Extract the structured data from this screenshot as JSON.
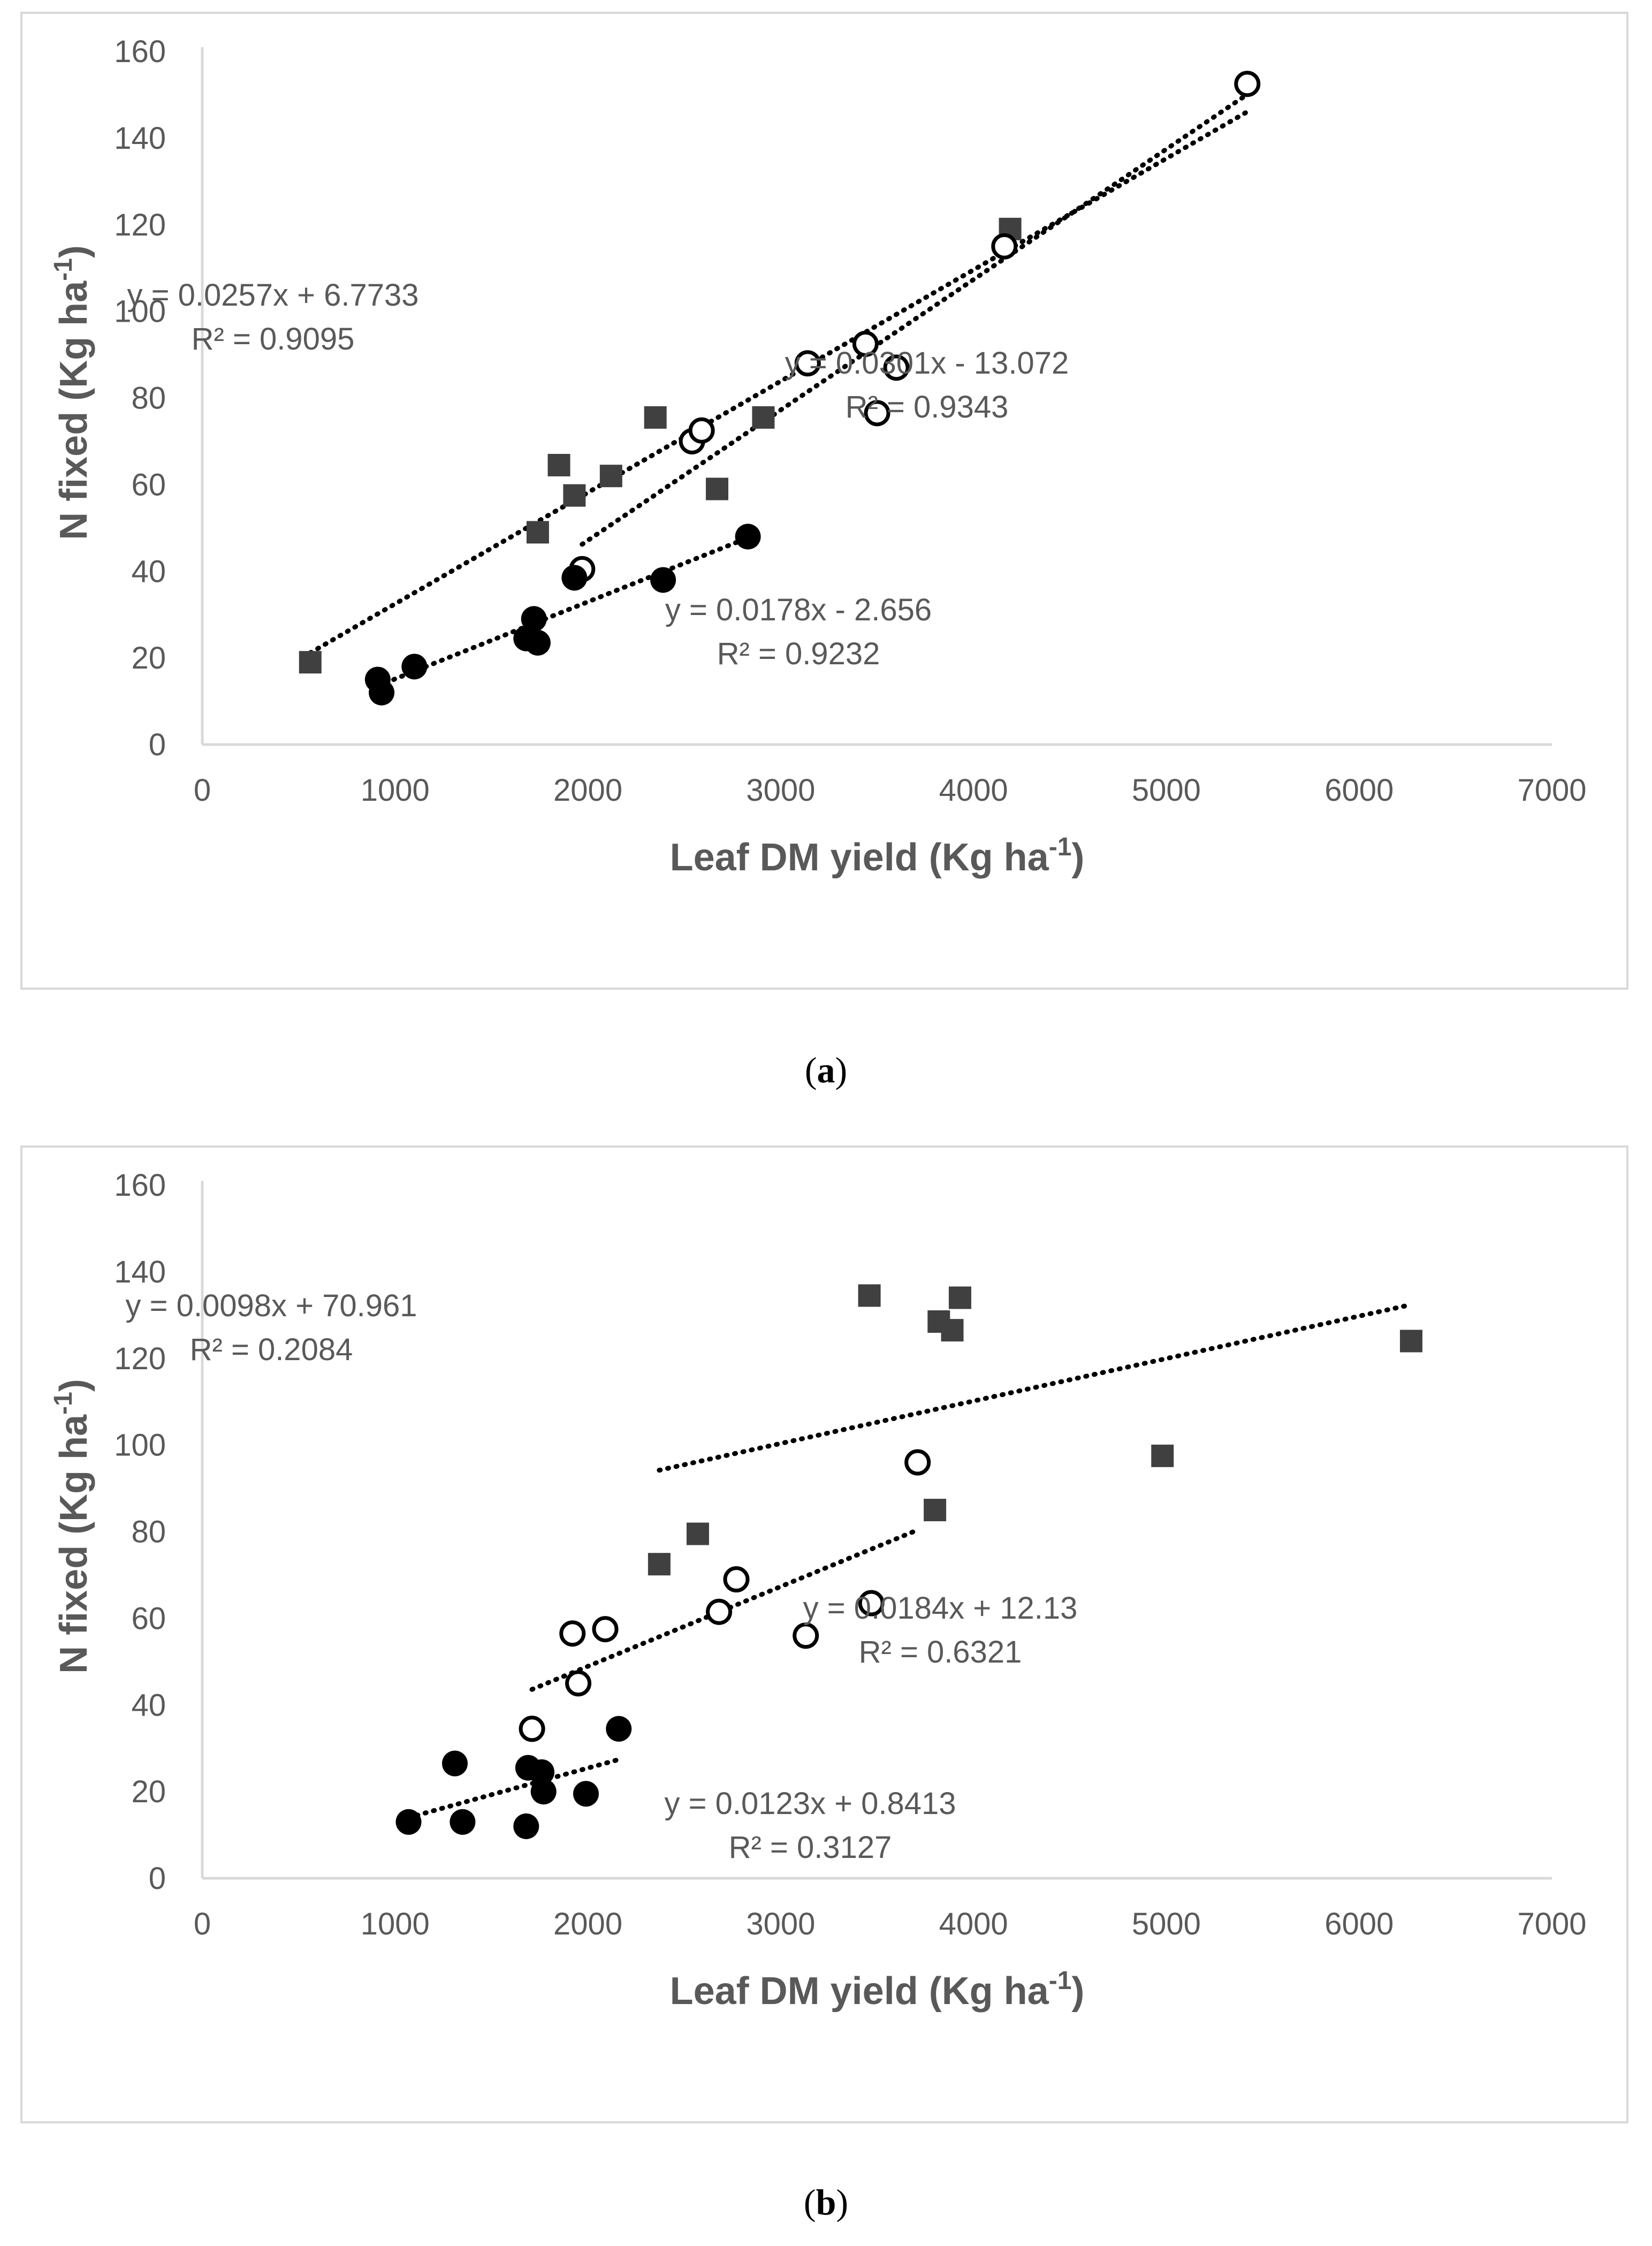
{
  "colors": {
    "axis": "#d9d9d9",
    "text": "#595959",
    "marker": "#000000",
    "square": "#404040",
    "caption": "#000000"
  },
  "charts": [
    {
      "panel": "a",
      "caption": {
        "open": "(",
        "letter": "a",
        "close": ")"
      },
      "xlabel": "Leaf DM yield (Kg ha",
      "ylabel": "N fixed (Kg ha",
      "unit_sup": "-1",
      "unit_close": ")",
      "annotations": [
        {
          "eq": "y = 0.0257x + 6.7733",
          "r2": "R² = 0.9095"
        },
        {
          "eq": "y = 0.0301x - 13.072",
          "r2": "R² = 0.9343"
        },
        {
          "eq": "y = 0.0178x - 2.656",
          "r2": "R² = 0.9232"
        }
      ]
    },
    {
      "panel": "b",
      "caption": {
        "open": "(",
        "letter": "b",
        "close": ")"
      },
      "xlabel": "Leaf DM yield (Kg ha",
      "ylabel": "N fixed (Kg ha",
      "unit_sup": "-1",
      "unit_close": ")",
      "annotations": [
        {
          "eq": "y = 0.0098x + 70.961",
          "r2": "R² = 0.2084"
        },
        {
          "eq": "y = 0.0184x + 12.13",
          "r2": "R² = 0.6321"
        },
        {
          "eq": "y = 0.0123x + 0.8413",
          "r2": "R² = 0.3127"
        }
      ]
    }
  ],
  "chart_data": [
    {
      "type": "scatter",
      "title": "",
      "xlabel": "Leaf DM yield (Kg ha-1)",
      "ylabel": "N fixed (Kg ha-1)",
      "xlim": [
        0,
        7000
      ],
      "ylim": [
        0,
        160
      ],
      "xticks": [
        0,
        1000,
        2000,
        3000,
        4000,
        5000,
        6000,
        7000
      ],
      "yticks": [
        0,
        20,
        40,
        60,
        80,
        100,
        120,
        140,
        160
      ],
      "grid": false,
      "series": [
        {
          "name": "filled square",
          "marker": "square",
          "x": [
            560,
            1740,
            1850,
            1930,
            2120,
            2350,
            2670,
            2910,
            4190
          ],
          "y": [
            19,
            49,
            64.5,
            57.5,
            62,
            75.5,
            59,
            75.5,
            119
          ],
          "trendline": {
            "slope": 0.0257,
            "intercept": 6.7733,
            "x_range": [
              560,
              5420
            ]
          }
        },
        {
          "name": "open circle",
          "marker": "open-circle",
          "x": [
            1970,
            2540,
            2590,
            3140,
            3440,
            3500,
            3600,
            4160,
            5420
          ],
          "y": [
            40.5,
            70,
            72.5,
            88,
            92.5,
            76.5,
            87,
            115,
            152.5
          ],
          "trendline": {
            "slope": 0.0301,
            "intercept": -13.072,
            "x_range": [
              1970,
              5420
            ]
          }
        },
        {
          "name": "filled circle",
          "marker": "filled-circle",
          "x": [
            910,
            930,
            1100,
            1680,
            1720,
            1740,
            1930,
            2390,
            2830
          ],
          "y": [
            15,
            12,
            18,
            24.5,
            29,
            23.5,
            38.5,
            38,
            48
          ],
          "trendline": {
            "slope": 0.0178,
            "intercept": -2.656,
            "x_range": [
              910,
              2830
            ]
          }
        }
      ]
    },
    {
      "type": "scatter",
      "title": "",
      "xlabel": "Leaf DM yield (Kg ha-1)",
      "ylabel": "N fixed (Kg ha-1)",
      "xlim": [
        0,
        7000
      ],
      "ylim": [
        0,
        160
      ],
      "xticks": [
        0,
        1000,
        2000,
        3000,
        4000,
        5000,
        6000,
        7000
      ],
      "yticks": [
        0,
        20,
        40,
        60,
        80,
        100,
        120,
        140,
        160
      ],
      "grid": false,
      "series": [
        {
          "name": "filled square",
          "marker": "square",
          "x": [
            2370,
            2570,
            3460,
            3800,
            3820,
            3890,
            3930,
            4980,
            6270
          ],
          "y": [
            72.5,
            79.5,
            134.5,
            85,
            128.5,
            126.5,
            134,
            97.5,
            124
          ],
          "trendline": {
            "slope": 0.0098,
            "intercept": 70.961,
            "x_range": [
              2370,
              6270
            ]
          }
        },
        {
          "name": "open circle",
          "marker": "open-circle",
          "x": [
            1710,
            1920,
            1950,
            2090,
            2680,
            2770,
            3130,
            3470,
            3710
          ],
          "y": [
            34.5,
            56.5,
            45,
            57.5,
            61.5,
            69,
            56,
            63.5,
            96
          ],
          "trendline": {
            "slope": 0.0184,
            "intercept": 12.13,
            "x_range": [
              1710,
              3710
            ]
          }
        },
        {
          "name": "filled circle",
          "marker": "filled-circle",
          "x": [
            1070,
            1310,
            1350,
            1680,
            1690,
            1760,
            1770,
            1990,
            2160
          ],
          "y": [
            13,
            26.5,
            13,
            12,
            25.5,
            24.5,
            20,
            19.5,
            34.5
          ],
          "trendline": {
            "slope": 0.0123,
            "intercept": 0.8413,
            "x_range": [
              1070,
              2160
            ]
          }
        }
      ]
    }
  ]
}
